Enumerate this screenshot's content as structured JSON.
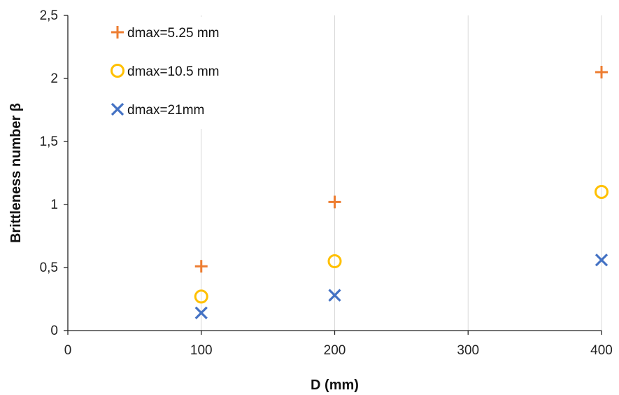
{
  "chart_data": {
    "type": "scatter",
    "xlabel": "D (mm)",
    "ylabel": "Brittleness number β",
    "xlim": [
      0,
      400
    ],
    "ylim": [
      0,
      2.5
    ],
    "x_ticks": [
      "0",
      "100",
      "200",
      "300",
      "400"
    ],
    "y_ticks": [
      "0",
      "0,5",
      "1",
      "1,5",
      "2",
      "2,5"
    ],
    "grid": "vertical",
    "legend_position": "top-left",
    "series": [
      {
        "name": "dmax=5.25 mm",
        "marker": "plus",
        "color": "#ED7D31",
        "points": [
          {
            "x": 100,
            "y": 0.51
          },
          {
            "x": 200,
            "y": 1.02
          },
          {
            "x": 400,
            "y": 2.05
          }
        ]
      },
      {
        "name": "dmax=10.5 mm",
        "marker": "circle",
        "color": "#FFC000",
        "points": [
          {
            "x": 100,
            "y": 0.27
          },
          {
            "x": 200,
            "y": 0.55
          },
          {
            "x": 400,
            "y": 1.1
          }
        ]
      },
      {
        "name": "dmax=21mm",
        "marker": "x",
        "color": "#4472C4",
        "points": [
          {
            "x": 100,
            "y": 0.14
          },
          {
            "x": 200,
            "y": 0.28
          },
          {
            "x": 400,
            "y": 0.56
          }
        ]
      }
    ]
  }
}
